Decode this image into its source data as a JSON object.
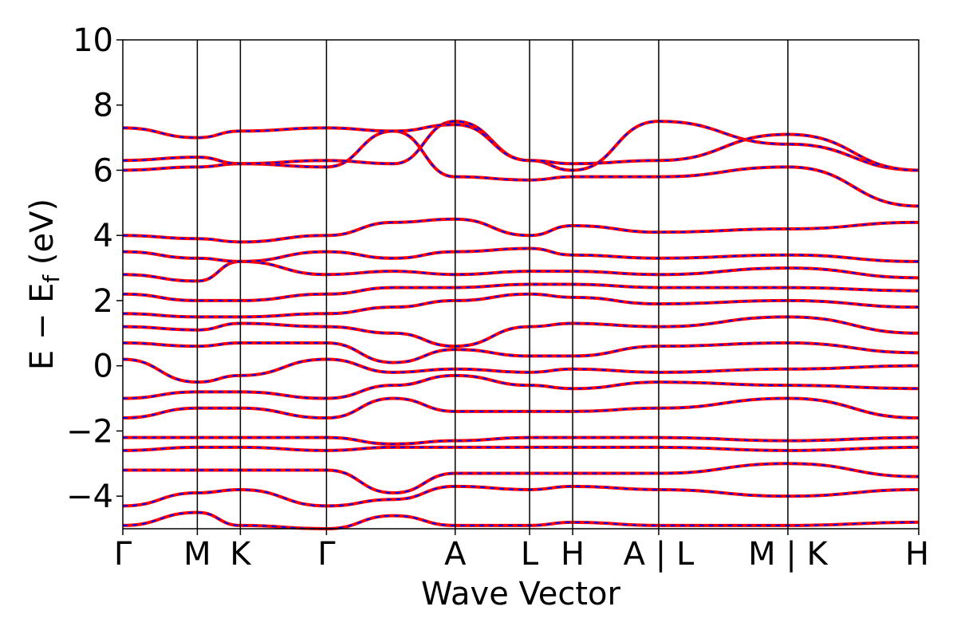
{
  "chart_data": {
    "type": "line",
    "title": "",
    "xlabel": "Wave Vector",
    "ylabel_main": "E − E",
    "ylabel_sub": "f",
    "ylabel_unit": " (eV)",
    "ylim": [
      -5,
      10
    ],
    "yticks": [
      -4,
      -2,
      0,
      2,
      4,
      6,
      8,
      10
    ],
    "ytick_labels": [
      "−4",
      "−2",
      "0",
      "2",
      "4",
      "6",
      "8",
      "10"
    ],
    "kpath_labels": [
      "Γ",
      "M",
      "K",
      "Γ",
      "A",
      "L",
      "H",
      "A | L",
      "M | K",
      "H"
    ],
    "kpath_positions": [
      0,
      0.0936,
      0.1477,
      0.2559,
      0.4176,
      0.5111,
      0.5652,
      0.6733,
      0.8356,
      1.0
    ],
    "grid": false,
    "legend": "none",
    "colors": {
      "primary": "#ff0000",
      "overlay": "#0000ff",
      "axis": "#000000"
    },
    "series": [
      {
        "style": "solid red with dashed blue overlay",
        "x": [
          0,
          0.0936,
          0.1477,
          0.2559,
          0.34,
          0.4176,
          0.5111,
          0.5652,
          0.6733,
          0.8356,
          1.0
        ],
        "y": [
          -4.9,
          -4.5,
          -4.9,
          -5.0,
          -4.6,
          -4.9,
          -4.9,
          -4.8,
          -4.9,
          -4.9,
          -4.8
        ]
      },
      {
        "x": [
          0,
          0.0936,
          0.1477,
          0.2559,
          0.34,
          0.4176,
          0.5111,
          0.5652,
          0.6733,
          0.8356,
          1.0
        ],
        "y": [
          -4.3,
          -3.9,
          -3.8,
          -4.3,
          -4.1,
          -3.7,
          -3.8,
          -3.7,
          -3.8,
          -4.0,
          -3.8
        ]
      },
      {
        "x": [
          0,
          0.0936,
          0.1477,
          0.2559,
          0.34,
          0.4176,
          0.5111,
          0.5652,
          0.6733,
          0.8356,
          1.0
        ],
        "y": [
          -3.2,
          -3.2,
          -3.2,
          -3.2,
          -3.9,
          -3.3,
          -3.3,
          -3.3,
          -3.3,
          -3.0,
          -3.4
        ]
      },
      {
        "x": [
          0,
          0.0936,
          0.1477,
          0.2559,
          0.34,
          0.4176,
          0.5111,
          0.5652,
          0.6733,
          0.8356,
          1.0
        ],
        "y": [
          -2.6,
          -2.5,
          -2.5,
          -2.6,
          -2.5,
          -2.5,
          -2.5,
          -2.5,
          -2.5,
          -2.6,
          -2.5
        ]
      },
      {
        "x": [
          0,
          0.0936,
          0.1477,
          0.2559,
          0.34,
          0.4176,
          0.5111,
          0.5652,
          0.6733,
          0.8356,
          1.0
        ],
        "y": [
          -2.2,
          -2.2,
          -2.2,
          -2.2,
          -2.4,
          -2.3,
          -2.2,
          -2.2,
          -2.2,
          -2.3,
          -2.2
        ]
      },
      {
        "x": [
          0,
          0.0936,
          0.1477,
          0.2559,
          0.34,
          0.4176,
          0.5111,
          0.5652,
          0.6733,
          0.8356,
          1.0
        ],
        "y": [
          -1.6,
          -1.3,
          -1.3,
          -1.6,
          -1.0,
          -1.4,
          -1.4,
          -1.4,
          -1.3,
          -1.0,
          -1.6
        ]
      },
      {
        "x": [
          0,
          0.0936,
          0.1477,
          0.2559,
          0.34,
          0.4176,
          0.5111,
          0.5652,
          0.6733,
          0.8356,
          1.0
        ],
        "y": [
          -1.0,
          -0.8,
          -0.8,
          -1.0,
          -0.6,
          -0.3,
          -0.6,
          -0.7,
          -0.5,
          -0.6,
          -0.7
        ]
      },
      {
        "x": [
          0,
          0.0936,
          0.1477,
          0.2559,
          0.34,
          0.4176,
          0.5111,
          0.5652,
          0.6733,
          0.8356,
          1.0
        ],
        "y": [
          0.2,
          -0.5,
          -0.3,
          0.2,
          -0.2,
          -0.1,
          -0.2,
          -0.1,
          -0.2,
          -0.1,
          0.0
        ]
      },
      {
        "x": [
          0,
          0.0936,
          0.1477,
          0.2559,
          0.34,
          0.4176,
          0.5111,
          0.5652,
          0.6733,
          0.8356,
          1.0
        ],
        "y": [
          0.7,
          0.6,
          0.7,
          0.7,
          0.1,
          0.5,
          0.3,
          0.3,
          0.6,
          0.7,
          0.4
        ]
      },
      {
        "x": [
          0,
          0.0936,
          0.1477,
          0.2559,
          0.34,
          0.4176,
          0.5111,
          0.5652,
          0.6733,
          0.8356,
          1.0
        ],
        "y": [
          1.2,
          1.1,
          1.3,
          1.2,
          1.0,
          0.6,
          1.2,
          1.3,
          1.2,
          1.5,
          1.0
        ]
      },
      {
        "x": [
          0,
          0.0936,
          0.1477,
          0.2559,
          0.34,
          0.4176,
          0.5111,
          0.5652,
          0.6733,
          0.8356,
          1.0
        ],
        "y": [
          1.6,
          1.5,
          1.5,
          1.6,
          1.8,
          2.0,
          2.2,
          2.1,
          1.9,
          2.0,
          1.8
        ]
      },
      {
        "x": [
          0,
          0.0936,
          0.1477,
          0.2559,
          0.34,
          0.4176,
          0.5111,
          0.5652,
          0.6733,
          0.8356,
          1.0
        ],
        "y": [
          2.2,
          2.0,
          2.0,
          2.2,
          2.4,
          2.4,
          2.5,
          2.5,
          2.4,
          2.4,
          2.3
        ]
      },
      {
        "x": [
          0,
          0.0936,
          0.1477,
          0.2559,
          0.34,
          0.4176,
          0.5111,
          0.5652,
          0.6733,
          0.8356,
          1.0
        ],
        "y": [
          2.8,
          2.6,
          3.2,
          2.8,
          2.9,
          2.8,
          2.9,
          2.9,
          2.8,
          3.0,
          2.7
        ]
      },
      {
        "x": [
          0,
          0.0936,
          0.1477,
          0.2559,
          0.34,
          0.4176,
          0.5111,
          0.5652,
          0.6733,
          0.8356,
          1.0
        ],
        "y": [
          3.5,
          3.3,
          3.2,
          3.5,
          3.3,
          3.5,
          3.6,
          3.4,
          3.3,
          3.4,
          3.2
        ]
      },
      {
        "x": [
          0,
          0.0936,
          0.1477,
          0.2559,
          0.34,
          0.4176,
          0.5111,
          0.5652,
          0.6733,
          0.8356,
          1.0
        ],
        "y": [
          4.0,
          3.9,
          3.8,
          4.0,
          4.4,
          4.5,
          4.0,
          4.3,
          4.1,
          4.2,
          4.4
        ]
      },
      {
        "x": [
          0,
          0.0936,
          0.1477,
          0.2559,
          0.34,
          0.4176,
          0.5111,
          0.5652,
          0.6733,
          0.8356,
          1.0
        ],
        "y": [
          6.0,
          6.1,
          6.2,
          6.1,
          7.2,
          5.8,
          5.7,
          5.8,
          5.8,
          6.1,
          4.9
        ]
      },
      {
        "x": [
          0,
          0.0936,
          0.1477,
          0.2559,
          0.34,
          0.4176,
          0.5111,
          0.5652,
          0.6733,
          0.8356,
          1.0
        ],
        "y": [
          6.3,
          6.4,
          6.2,
          6.3,
          6.2,
          7.5,
          6.3,
          6.0,
          7.5,
          6.8,
          6.0
        ]
      },
      {
        "x": [
          0,
          0.0936,
          0.1477,
          0.2559,
          0.34,
          0.4176,
          0.5111,
          0.5652,
          0.6733,
          0.8356,
          1.0
        ],
        "y": [
          7.3,
          7.0,
          7.2,
          7.3,
          7.2,
          7.4,
          6.3,
          6.2,
          6.3,
          7.1,
          6.0
        ]
      }
    ]
  }
}
